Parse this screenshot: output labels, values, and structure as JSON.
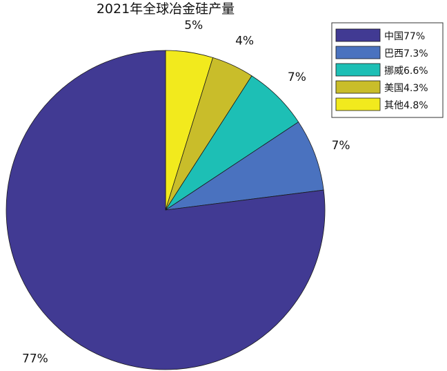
{
  "chart_data": {
    "type": "pie",
    "title": "2021年全球冶金硅产量",
    "slices": [
      {
        "name": "中国77%",
        "value": 77,
        "label": "77%",
        "color": "#413a93"
      },
      {
        "name": "巴西7.3%",
        "value": 7.3,
        "label": "7%",
        "color": "#4a72bf"
      },
      {
        "name": "挪威6.6%",
        "value": 6.6,
        "label": "7%",
        "color": "#1dbfb5"
      },
      {
        "name": "美国4.3%",
        "value": 4.3,
        "label": "4%",
        "color": "#c9bd2a"
      },
      {
        "name": "其他4.8%",
        "value": 4.8,
        "label": "5%",
        "color": "#f2ea1d"
      }
    ],
    "legend": "top-right",
    "start_angle_deg": 90,
    "direction": "clockwise"
  }
}
